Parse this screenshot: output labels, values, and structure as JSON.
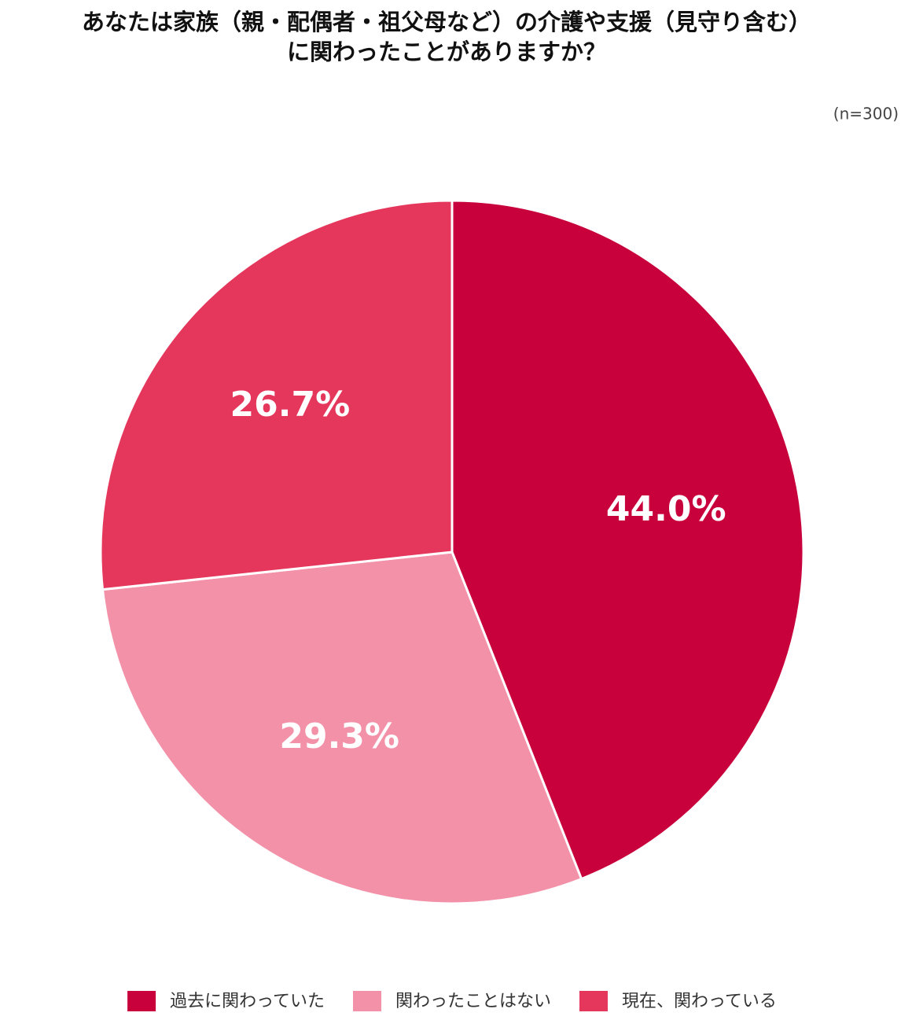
{
  "chart_data": {
    "type": "pie",
    "title": [
      "あなたは家族（親・配偶者・祖父母など）の介護や支援（見守り含む）",
      "に関わったことがありますか？"
    ],
    "note": "(n=300)",
    "categories": [
      "過去に関わっていた",
      "関わったことはない",
      "現在、関わっている"
    ],
    "values": [
      44.0,
      29.3,
      26.7
    ],
    "value_labels": [
      "44.0%",
      "29.3%",
      "26.7%"
    ],
    "colors": [
      "#c8003c",
      "#f291a8",
      "#e5365b"
    ],
    "legend": "bottom"
  }
}
